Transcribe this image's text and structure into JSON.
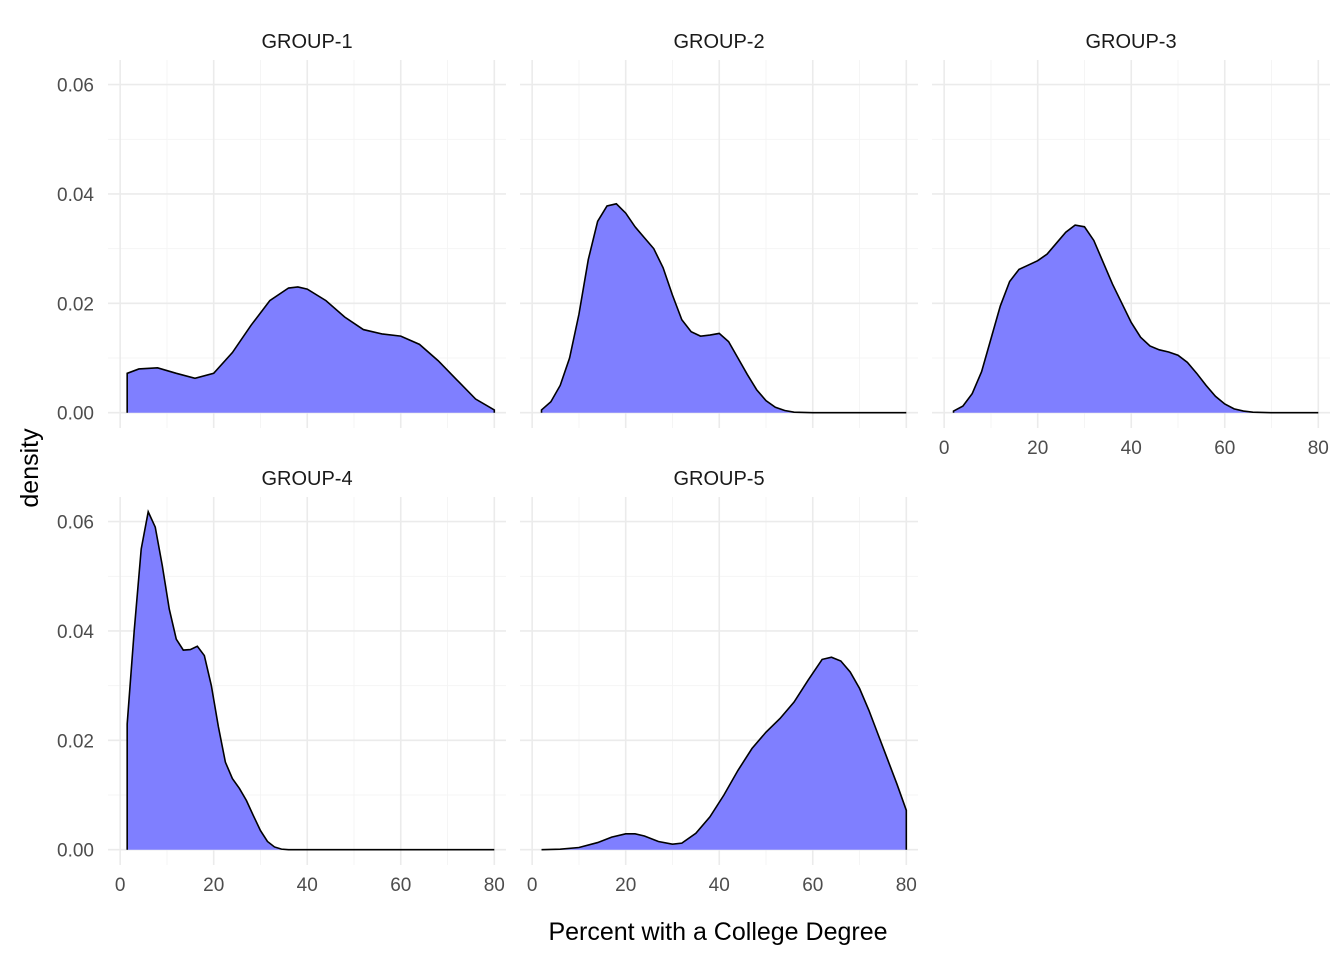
{
  "chart_data": {
    "type": "area",
    "xlabel": "Percent with a College Degree",
    "ylabel": "density",
    "xlim": [
      0,
      80
    ],
    "ylim": [
      0,
      0.062
    ],
    "x_ticks": [
      "0",
      "20",
      "40",
      "60",
      "80"
    ],
    "y_ticks": [
      "0.00",
      "0.02",
      "0.04",
      "0.06"
    ],
    "grid": true,
    "fill_color": "#7f7fff",
    "line_color": "#000000",
    "panels": [
      {
        "title": "GROUP-1",
        "x": [
          1.5,
          4,
          8,
          12,
          16,
          20,
          24,
          28,
          32,
          36,
          38,
          40,
          44,
          48,
          52,
          56,
          60,
          64,
          68,
          72,
          76,
          80
        ],
        "y": [
          0.0072,
          0.008,
          0.0082,
          0.0072,
          0.0063,
          0.0072,
          0.011,
          0.016,
          0.0205,
          0.0228,
          0.023,
          0.0226,
          0.0205,
          0.0175,
          0.0152,
          0.0144,
          0.014,
          0.0125,
          0.0095,
          0.006,
          0.0025,
          0.0005
        ]
      },
      {
        "title": "GROUP-2",
        "x": [
          2,
          4,
          6,
          8,
          10,
          12,
          14,
          16,
          18,
          20,
          22,
          24,
          26,
          28,
          30,
          32,
          34,
          36,
          38,
          40,
          42,
          44,
          46,
          48,
          50,
          52,
          54,
          56,
          60,
          70,
          80
        ],
        "y": [
          0.0005,
          0.002,
          0.005,
          0.01,
          0.018,
          0.028,
          0.035,
          0.0378,
          0.0382,
          0.0365,
          0.034,
          0.032,
          0.03,
          0.0265,
          0.0215,
          0.017,
          0.0148,
          0.014,
          0.0142,
          0.0145,
          0.013,
          0.01,
          0.007,
          0.0042,
          0.0022,
          0.001,
          0.0004,
          0.0001,
          0.0,
          0.0,
          0.0
        ]
      },
      {
        "title": "GROUP-3",
        "x": [
          2,
          4,
          6,
          8,
          10,
          12,
          14,
          16,
          18,
          20,
          22,
          24,
          26,
          28,
          30,
          32,
          34,
          36,
          38,
          40,
          42,
          44,
          46,
          48,
          50,
          52,
          54,
          56,
          58,
          60,
          62,
          64,
          66,
          70,
          80
        ],
        "y": [
          0.0003,
          0.0012,
          0.0035,
          0.0075,
          0.0135,
          0.0195,
          0.024,
          0.0262,
          0.027,
          0.0278,
          0.029,
          0.031,
          0.033,
          0.0343,
          0.034,
          0.0315,
          0.0275,
          0.0235,
          0.02,
          0.0165,
          0.0138,
          0.0122,
          0.0115,
          0.0111,
          0.0105,
          0.0092,
          0.0072,
          0.005,
          0.003,
          0.0016,
          0.0007,
          0.0003,
          0.0001,
          0.0,
          0.0
        ]
      },
      {
        "title": "GROUP-4",
        "x": [
          1.5,
          3,
          4.5,
          6,
          7.5,
          9,
          10.5,
          12,
          13.5,
          15,
          16.5,
          18,
          19.5,
          21,
          22.5,
          24,
          25.5,
          27,
          28.5,
          30,
          31.5,
          33,
          34.5,
          36,
          40,
          50,
          60,
          70,
          80
        ],
        "y": [
          0.023,
          0.04,
          0.055,
          0.0618,
          0.059,
          0.052,
          0.044,
          0.0385,
          0.0365,
          0.0366,
          0.0372,
          0.0355,
          0.03,
          0.0225,
          0.016,
          0.013,
          0.0112,
          0.009,
          0.0062,
          0.0035,
          0.0015,
          0.0005,
          0.0001,
          0.0,
          0.0,
          0.0,
          0.0,
          0.0,
          0.0
        ]
      },
      {
        "title": "GROUP-5",
        "x": [
          2,
          6,
          10,
          14,
          17,
          20,
          22,
          24,
          27,
          30,
          32,
          35,
          38,
          41,
          44,
          47,
          50,
          53,
          56,
          59,
          62,
          64,
          66,
          68,
          70,
          72,
          74,
          76,
          78,
          80
        ],
        "y": [
          0.0,
          0.0001,
          0.0004,
          0.0013,
          0.0023,
          0.0029,
          0.0029,
          0.0025,
          0.0015,
          0.001,
          0.0012,
          0.003,
          0.006,
          0.01,
          0.0145,
          0.0185,
          0.0215,
          0.024,
          0.027,
          0.031,
          0.0348,
          0.0352,
          0.0345,
          0.0325,
          0.0295,
          0.0255,
          0.021,
          0.0165,
          0.012,
          0.0072
        ]
      }
    ]
  }
}
